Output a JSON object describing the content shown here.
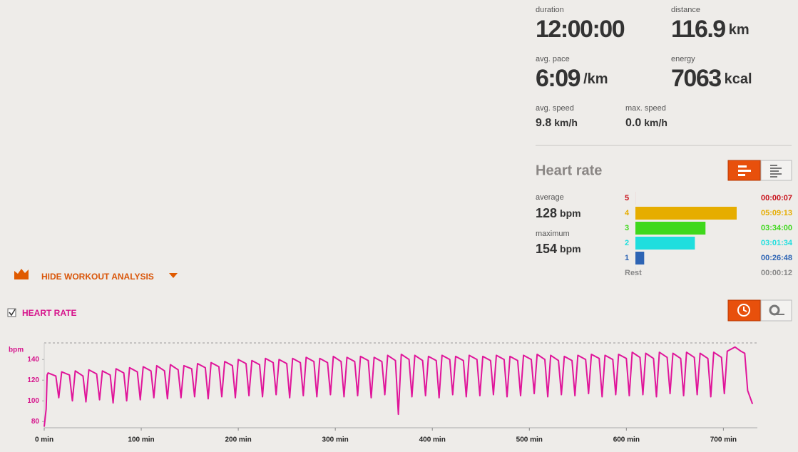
{
  "summary": {
    "duration": {
      "label": "duration",
      "value": "12:00:00"
    },
    "distance": {
      "label": "distance",
      "value": "116.9",
      "unit": "km"
    },
    "avg_pace": {
      "label": "avg. pace",
      "value": "6:09",
      "unit": "/km"
    },
    "energy": {
      "label": "energy",
      "value": "7063",
      "unit": "kcal"
    },
    "avg_speed": {
      "label": "avg. speed",
      "value": "9.8",
      "unit": "km/h"
    },
    "max_speed": {
      "label": "max. speed",
      "value": "0.0",
      "unit": "km/h"
    }
  },
  "heart_rate": {
    "title": "Heart rate",
    "average": {
      "label": "average",
      "value": "128",
      "unit": "bpm"
    },
    "maximum": {
      "label": "maximum",
      "value": "154",
      "unit": "bpm"
    }
  },
  "analysis": {
    "toggle": "HIDE WORKOUT ANALYSIS",
    "checkbox": "HEART RATE"
  },
  "chart_data": [
    {
      "type": "bar",
      "orientation": "horizontal",
      "categories": [
        "5",
        "4",
        "3",
        "2",
        "1",
        "Rest"
      ],
      "values": [
        7,
        18553,
        12840,
        10894,
        1608,
        12
      ],
      "value_labels": [
        "00:00:07",
        "05:09:13",
        "03:34:00",
        "03:01:34",
        "00:26:48",
        "00:00:12"
      ],
      "colors": [
        "#c8101a",
        "#e6ad00",
        "#3fd81c",
        "#1fdede",
        "#2d64b4",
        "#888888"
      ]
    },
    {
      "type": "line",
      "ylabel": "bpm",
      "color": "#e0159a",
      "xlim": [
        0,
        735
      ],
      "ylim": [
        74,
        156
      ],
      "xticks": [
        {
          "value": 0,
          "label": "0 min"
        },
        {
          "value": 100,
          "label": "100 min"
        },
        {
          "value": 200,
          "label": "200 min"
        },
        {
          "value": 300,
          "label": "300 min"
        },
        {
          "value": 400,
          "label": "400 min"
        },
        {
          "value": 500,
          "label": "500 min"
        },
        {
          "value": 600,
          "label": "600 min"
        },
        {
          "value": 700,
          "label": "700 min"
        }
      ],
      "yticks": [
        80,
        100,
        120,
        140
      ],
      "x": [
        0,
        2,
        3,
        4,
        12,
        15,
        18,
        26,
        29,
        32,
        40,
        43,
        46,
        54,
        57,
        60,
        68,
        71,
        74,
        82,
        85,
        88,
        96,
        99,
        102,
        110,
        113,
        116,
        124,
        127,
        130,
        138,
        141,
        144,
        152,
        155,
        158,
        166,
        169,
        172,
        180,
        183,
        186,
        194,
        197,
        200,
        208,
        211,
        214,
        222,
        225,
        228,
        236,
        239,
        242,
        250,
        253,
        256,
        264,
        267,
        270,
        278,
        281,
        284,
        292,
        295,
        298,
        306,
        309,
        312,
        320,
        323,
        326,
        334,
        337,
        340,
        348,
        351,
        354,
        362,
        365,
        368,
        376,
        379,
        382,
        390,
        393,
        396,
        404,
        407,
        410,
        418,
        421,
        424,
        432,
        435,
        438,
        446,
        449,
        452,
        460,
        463,
        466,
        474,
        477,
        480,
        488,
        491,
        494,
        502,
        505,
        508,
        516,
        519,
        522,
        530,
        533,
        536,
        544,
        547,
        550,
        558,
        561,
        564,
        572,
        575,
        578,
        586,
        589,
        592,
        600,
        603,
        606,
        614,
        617,
        620,
        628,
        631,
        634,
        642,
        645,
        648,
        656,
        659,
        662,
        670,
        673,
        676,
        684,
        687,
        690,
        698,
        701,
        704,
        712,
        718,
        722,
        725,
        730
      ],
      "values": [
        75,
        92,
        125,
        127,
        124,
        103,
        128,
        125,
        100,
        129,
        124,
        99,
        130,
        126,
        101,
        129,
        125,
        98,
        131,
        127,
        100,
        132,
        128,
        101,
        133,
        129,
        103,
        134,
        129,
        102,
        135,
        130,
        103,
        134,
        131,
        104,
        136,
        132,
        102,
        137,
        133,
        104,
        138,
        134,
        103,
        140,
        136,
        105,
        139,
        135,
        104,
        141,
        137,
        106,
        140,
        136,
        103,
        141,
        137,
        105,
        142,
        138,
        104,
        141,
        137,
        106,
        143,
        138,
        104,
        142,
        138,
        105,
        143,
        139,
        103,
        142,
        138,
        106,
        144,
        139,
        87,
        145,
        140,
        104,
        144,
        139,
        105,
        143,
        139,
        103,
        144,
        140,
        106,
        143,
        139,
        104,
        144,
        140,
        105,
        143,
        139,
        106,
        144,
        140,
        104,
        143,
        139,
        105,
        144,
        140,
        107,
        145,
        140,
        104,
        144,
        139,
        106,
        143,
        139,
        105,
        144,
        140,
        107,
        145,
        141,
        104,
        144,
        140,
        106,
        145,
        141,
        105,
        147,
        142,
        106,
        146,
        141,
        104,
        147,
        142,
        107,
        146,
        141,
        105,
        147,
        142,
        106,
        146,
        141,
        104,
        147,
        142,
        107,
        148,
        152,
        148,
        146,
        110,
        97
      ]
    }
  ]
}
